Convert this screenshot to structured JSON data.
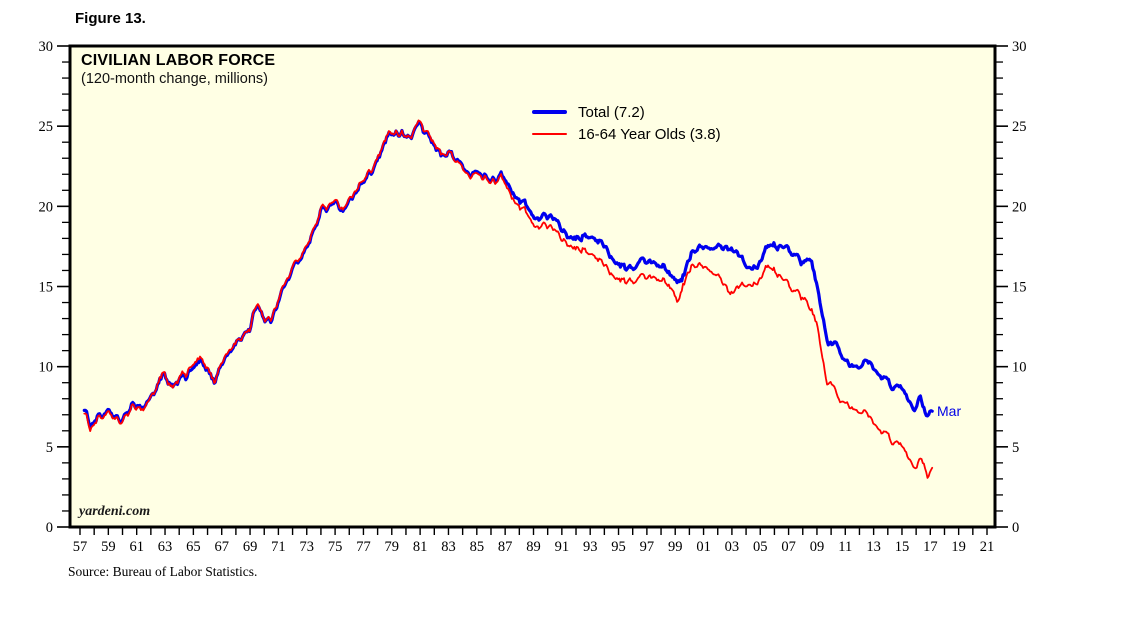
{
  "figure_label": "Figure 13.",
  "chart": {
    "title": "CIVILIAN LABOR FORCE",
    "subtitle": "(120-month change, millions)",
    "watermark": "yardeni.com",
    "end_label": "Mar",
    "source": "Source: Bureau of Labor Statistics."
  },
  "legend": {
    "items": [
      {
        "label": "Total (7.2)",
        "color": "#0000ee",
        "thickness": 4
      },
      {
        "label": "16-64 Year Olds (3.8)",
        "color": "#ff0000",
        "thickness": 2
      }
    ]
  },
  "chart_data": {
    "type": "line",
    "title": "CIVILIAN LABOR FORCE",
    "subtitle": "(120-month change, millions)",
    "xlabel": "",
    "ylabel": "",
    "ylim": [
      0,
      30
    ],
    "y_major_ticks": [
      0,
      5,
      10,
      15,
      20,
      25,
      30
    ],
    "y_minor_step": 1,
    "x_first_year": 1957,
    "x_last_year": 2021,
    "x_tick_step_years": 1,
    "x_label_years": [
      "57",
      "59",
      "61",
      "63",
      "65",
      "67",
      "69",
      "71",
      "73",
      "75",
      "77",
      "79",
      "81",
      "83",
      "85",
      "87",
      "89",
      "91",
      "93",
      "95",
      "97",
      "99",
      "01",
      "03",
      "05",
      "07",
      "09",
      "11",
      "13",
      "15",
      "17",
      "19",
      "21"
    ],
    "plot_bg": "#ffffe4",
    "grid": false,
    "legend_position": "top-center",
    "series": [
      {
        "name": "Total",
        "legend": "Total (7.2)",
        "color": "#0000ee",
        "width": 3.2,
        "latest": {
          "period": "Mar",
          "value": 7.2
        },
        "points": [
          [
            1957.3,
            7.4
          ],
          [
            1957.7,
            6.5
          ],
          [
            1958.3,
            7.1
          ],
          [
            1959,
            7.0
          ],
          [
            1959.8,
            6.6
          ],
          [
            1960.5,
            7.2
          ],
          [
            1961,
            7.7
          ],
          [
            1961.5,
            7.4
          ],
          [
            1962,
            8.0
          ],
          [
            1962.9,
            9.6
          ],
          [
            1963.4,
            8.6
          ],
          [
            1964,
            9.2
          ],
          [
            1964.8,
            9.7
          ],
          [
            1965.5,
            10.1
          ],
          [
            1966.5,
            9.3
          ],
          [
            1967,
            10.2
          ],
          [
            1967.6,
            10.9
          ],
          [
            1968.3,
            11.5
          ],
          [
            1969,
            12.4
          ],
          [
            1969.5,
            14.0
          ],
          [
            1970,
            12.8
          ],
          [
            1970.5,
            13.0
          ],
          [
            1971.2,
            14.8
          ],
          [
            1971.8,
            15.8
          ],
          [
            1972.3,
            16.4
          ],
          [
            1973.1,
            17.7
          ],
          [
            1974.2,
            19.8
          ],
          [
            1975,
            20.2
          ],
          [
            1975.6,
            19.7
          ],
          [
            1976.1,
            20.6
          ],
          [
            1977.3,
            21.8
          ],
          [
            1978.2,
            23.4
          ],
          [
            1978.6,
            24.4
          ],
          [
            1979.5,
            24.5
          ],
          [
            1980.3,
            24.3
          ],
          [
            1980.9,
            25.2
          ],
          [
            1981.4,
            24.4
          ],
          [
            1982.2,
            23.5
          ],
          [
            1983.1,
            23.3
          ],
          [
            1983.6,
            22.9
          ],
          [
            1984.3,
            21.8
          ],
          [
            1985,
            22.1
          ],
          [
            1985.9,
            21.8
          ],
          [
            1986.6,
            21.9
          ],
          [
            1987.2,
            21.3
          ],
          [
            1988,
            20.3
          ],
          [
            1989,
            19.4
          ],
          [
            1990,
            19.3
          ],
          [
            1990.6,
            18.9
          ],
          [
            1991.4,
            18.4
          ],
          [
            1992.3,
            18.0
          ],
          [
            1992.8,
            18.2
          ],
          [
            1993.9,
            17.7
          ],
          [
            1994.6,
            16.9
          ],
          [
            1995.8,
            16.2
          ],
          [
            1996.7,
            16.5
          ],
          [
            1997.7,
            16.3
          ],
          [
            1998.8,
            15.6
          ],
          [
            1999.5,
            15.4
          ],
          [
            2000.1,
            17.0
          ],
          [
            2000.7,
            17.5
          ],
          [
            2001.5,
            17.4
          ],
          [
            2002.3,
            17.7
          ],
          [
            2003.1,
            17.3
          ],
          [
            2004.1,
            16.3
          ],
          [
            2004.8,
            16.4
          ],
          [
            2005.7,
            17.6
          ],
          [
            2006.5,
            17.7
          ],
          [
            2007.2,
            17.4
          ],
          [
            2007.8,
            16.9
          ],
          [
            2008.5,
            17.0
          ],
          [
            2009,
            14.9
          ],
          [
            2009.4,
            13.3
          ],
          [
            2009.8,
            11.7
          ],
          [
            2010.4,
            11.5
          ],
          [
            2010.8,
            10.4
          ],
          [
            2011.3,
            10.1
          ],
          [
            2012,
            10.2
          ],
          [
            2012.7,
            10.0
          ],
          [
            2013.2,
            9.6
          ],
          [
            2014.1,
            8.9
          ],
          [
            2014.8,
            8.6
          ],
          [
            2015.5,
            8.0
          ],
          [
            2015.9,
            7.4
          ],
          [
            2016.3,
            7.9
          ],
          [
            2016.7,
            6.9
          ],
          [
            2017,
            7.4
          ],
          [
            2017.2,
            7.2
          ]
        ]
      },
      {
        "name": "16-64 Year Olds",
        "legend": "16-64 Year Olds (3.8)",
        "color": "#ff0000",
        "width": 1.8,
        "latest": {
          "period": "Mar",
          "value": 3.8
        },
        "points": [
          [
            1957.3,
            7.2
          ],
          [
            1957.7,
            6.3
          ],
          [
            1958.3,
            7.0
          ],
          [
            1959,
            6.9
          ],
          [
            1959.8,
            6.5
          ],
          [
            1960.5,
            7.1
          ],
          [
            1961,
            7.6
          ],
          [
            1961.5,
            7.3
          ],
          [
            1962,
            8.0
          ],
          [
            1962.9,
            9.7
          ],
          [
            1963.4,
            8.5
          ],
          [
            1964,
            9.3
          ],
          [
            1964.8,
            9.9
          ],
          [
            1965.5,
            10.3
          ],
          [
            1966.5,
            9.3
          ],
          [
            1967,
            10.3
          ],
          [
            1967.6,
            11.0
          ],
          [
            1968.3,
            11.5
          ],
          [
            1969,
            12.4
          ],
          [
            1969.5,
            14.1
          ],
          [
            1970,
            12.8
          ],
          [
            1970.5,
            13.1
          ],
          [
            1971.2,
            14.9
          ],
          [
            1971.8,
            15.9
          ],
          [
            1972.3,
            16.5
          ],
          [
            1973.1,
            17.8
          ],
          [
            1974.2,
            19.9
          ],
          [
            1975,
            20.3
          ],
          [
            1975.6,
            19.8
          ],
          [
            1976.1,
            20.7
          ],
          [
            1977.3,
            21.9
          ],
          [
            1978.2,
            23.5
          ],
          [
            1978.6,
            24.5
          ],
          [
            1979.5,
            24.5
          ],
          [
            1980.3,
            24.3
          ],
          [
            1980.9,
            25.3
          ],
          [
            1981.4,
            24.5
          ],
          [
            1982.2,
            23.6
          ],
          [
            1983.1,
            23.3
          ],
          [
            1983.6,
            22.8
          ],
          [
            1984.3,
            21.7
          ],
          [
            1985,
            22.0
          ],
          [
            1985.9,
            21.7
          ],
          [
            1986.6,
            21.8
          ],
          [
            1987.2,
            21.0
          ],
          [
            1988,
            19.9
          ],
          [
            1989,
            18.9
          ],
          [
            1990,
            18.7
          ],
          [
            1990.6,
            18.2
          ],
          [
            1991.4,
            17.9
          ],
          [
            1992.3,
            17.3
          ],
          [
            1992.8,
            17.2
          ],
          [
            1993.9,
            16.5
          ],
          [
            1994.6,
            15.9
          ],
          [
            1995.8,
            15.4
          ],
          [
            1996.7,
            15.5
          ],
          [
            1997.7,
            15.4
          ],
          [
            1998.8,
            14.8
          ],
          [
            1999.2,
            14.2
          ],
          [
            2000.1,
            16.2
          ],
          [
            2000.7,
            16.4
          ],
          [
            2001.5,
            16.0
          ],
          [
            2002.3,
            15.6
          ],
          [
            2002.9,
            14.6
          ],
          [
            2003.6,
            15.0
          ],
          [
            2004.1,
            15.2
          ],
          [
            2004.8,
            15.4
          ],
          [
            2005.6,
            16.2
          ],
          [
            2006.2,
            16.0
          ],
          [
            2007,
            15.3
          ],
          [
            2007.5,
            14.9
          ],
          [
            2008.2,
            14.6
          ],
          [
            2009,
            12.5
          ],
          [
            2009.7,
            9.3
          ],
          [
            2010.1,
            9.1
          ],
          [
            2010.6,
            7.8
          ],
          [
            2011.3,
            7.5
          ],
          [
            2012,
            7.4
          ],
          [
            2012.7,
            6.6
          ],
          [
            2013.7,
            5.8
          ],
          [
            2014.6,
            5.2
          ],
          [
            2015.5,
            4.4
          ],
          [
            2016,
            3.7
          ],
          [
            2016.4,
            4.1
          ],
          [
            2016.8,
            3.2
          ],
          [
            2017,
            3.6
          ],
          [
            2017.2,
            3.8
          ]
        ]
      }
    ]
  }
}
